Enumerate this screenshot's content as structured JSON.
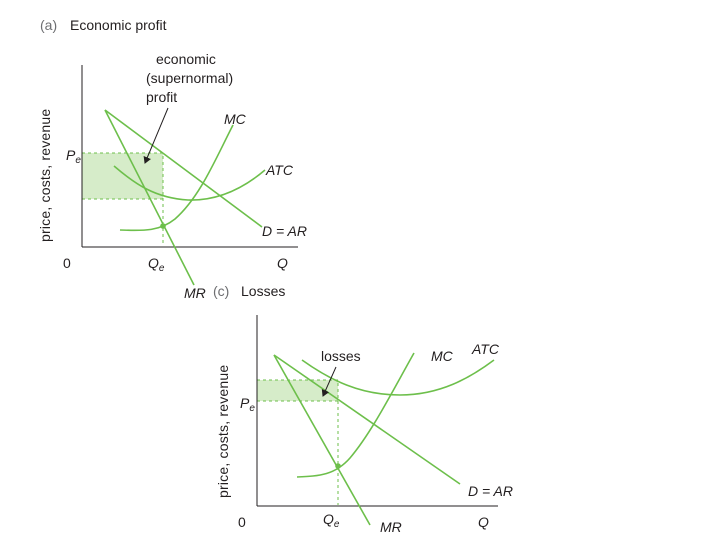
{
  "panel_a": {
    "letter": "(a)",
    "title": "Economic profit",
    "y_axis_title": "price, costs, revenue",
    "origin": "0",
    "q_axis": "Q",
    "pe_main": "P",
    "pe_sub": "e",
    "qe_main": "Q",
    "qe_sub": "e",
    "annotation_lines": [
      "economic",
      "(supernormal)",
      "profit"
    ],
    "curve_labels": {
      "mc": "MC",
      "atc": "ATC",
      "demand": "D = AR",
      "mr": "MR"
    }
  },
  "panel_c": {
    "letter": "(c)",
    "title": "Losses",
    "y_axis_title": "price, costs, revenue",
    "origin": "0",
    "q_axis": "Q",
    "pe_main": "P",
    "pe_sub": "e",
    "qe_main": "Q",
    "qe_sub": "e",
    "annotation_lines": [
      "losses"
    ],
    "curve_labels": {
      "mc": "MC",
      "atc": "ATC",
      "demand": "D = AR",
      "mr": "MR"
    }
  },
  "colors": {
    "curve": "#6dbf4b",
    "shade": "#d6ecc9",
    "text": "#231f20",
    "panel_letter": "#6d6e71"
  }
}
